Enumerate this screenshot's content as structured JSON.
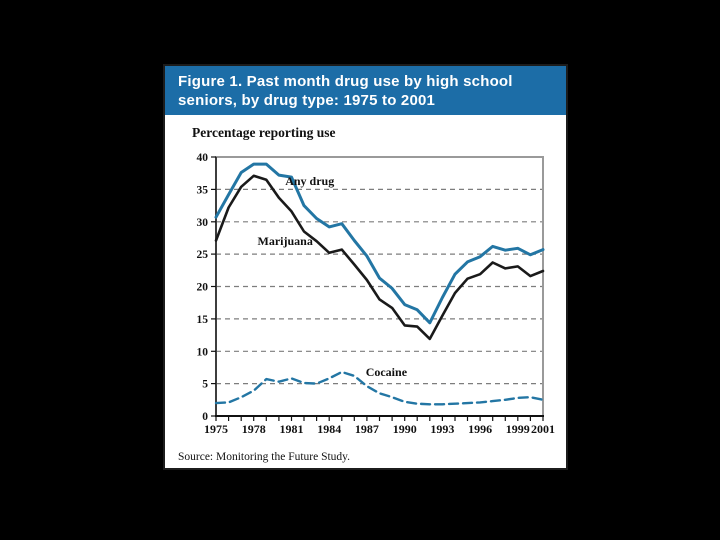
{
  "figure": {
    "header": {
      "line1": "Figure 1.  Past month drug use by high school",
      "line2": "seniors, by drug type: 1975 to 2001",
      "bg": "#1c6da7",
      "text_color": "#ffffff"
    },
    "axis_title": "Percentage reporting use",
    "source": "Source: Monitoring the Future Study."
  },
  "chart_data": {
    "type": "line",
    "title": "Past month drug use by high school seniors, by drug type: 1975 to 2001",
    "ylabel": "Percentage reporting use",
    "xlabel": "",
    "xlim": [
      1975,
      2001
    ],
    "ylim": [
      0,
      40
    ],
    "grid": "horizontal dashed gridlines at 5,10,15,20,25,30,35",
    "legend": "inline annotations next to lines",
    "x": [
      1975,
      1976,
      1977,
      1978,
      1979,
      1980,
      1981,
      1982,
      1983,
      1984,
      1985,
      1986,
      1987,
      1988,
      1989,
      1990,
      1991,
      1992,
      1993,
      1994,
      1995,
      1996,
      1997,
      1998,
      1999,
      2000,
      2001
    ],
    "x_tick_years": [
      1975,
      1978,
      1981,
      1984,
      1987,
      1990,
      1993,
      1996,
      1999,
      2001
    ],
    "x_tick_labels": [
      "1975",
      "1978",
      "1981",
      "1984",
      "1987",
      "1990",
      "1993",
      "1996",
      "1999",
      "2001"
    ],
    "y_ticks": [
      0,
      5,
      10,
      15,
      20,
      25,
      30,
      35,
      40
    ],
    "colors": {
      "line_blue": "#2376a4",
      "line_black": "#1a1a1a",
      "gridline": "#7d7d7d",
      "axis": "#111111",
      "plot_border": "#9a9a9a"
    },
    "series": [
      {
        "name": "Any drug",
        "style": "solid",
        "color": "#2376a4",
        "values": [
          30.7,
          34.2,
          37.6,
          38.9,
          38.9,
          37.2,
          36.9,
          32.5,
          30.5,
          29.2,
          29.7,
          27.1,
          24.7,
          21.3,
          19.7,
          17.2,
          16.4,
          14.4,
          18.3,
          21.9,
          23.8,
          24.6,
          26.2,
          25.6,
          25.9,
          24.9,
          25.7
        ]
      },
      {
        "name": "Marijuana",
        "style": "solid",
        "color": "#1a1a1a",
        "values": [
          27.1,
          32.2,
          35.4,
          37.1,
          36.5,
          33.7,
          31.6,
          28.5,
          27.0,
          25.2,
          25.7,
          23.4,
          21.0,
          18.0,
          16.7,
          14.0,
          13.8,
          11.9,
          15.5,
          19.0,
          21.2,
          21.9,
          23.7,
          22.8,
          23.1,
          21.6,
          22.4
        ]
      },
      {
        "name": "Cocaine",
        "style": "dashed",
        "color": "#2376a4",
        "values": [
          2.0,
          2.1,
          2.9,
          3.9,
          5.7,
          5.3,
          5.8,
          5.1,
          5.0,
          5.8,
          6.8,
          6.2,
          4.6,
          3.5,
          2.9,
          2.2,
          1.9,
          1.8,
          1.8,
          1.9,
          2.0,
          2.1,
          2.3,
          2.5,
          2.8,
          2.9,
          2.5
        ]
      }
    ],
    "annotations": [
      {
        "text": "Any drug",
        "year": 1980.5,
        "value": 35.7
      },
      {
        "text": "Marijuana",
        "year": 1978.3,
        "value": 26.4
      },
      {
        "text": "Cocaine",
        "year": 1986.9,
        "value": 6.2
      }
    ]
  }
}
